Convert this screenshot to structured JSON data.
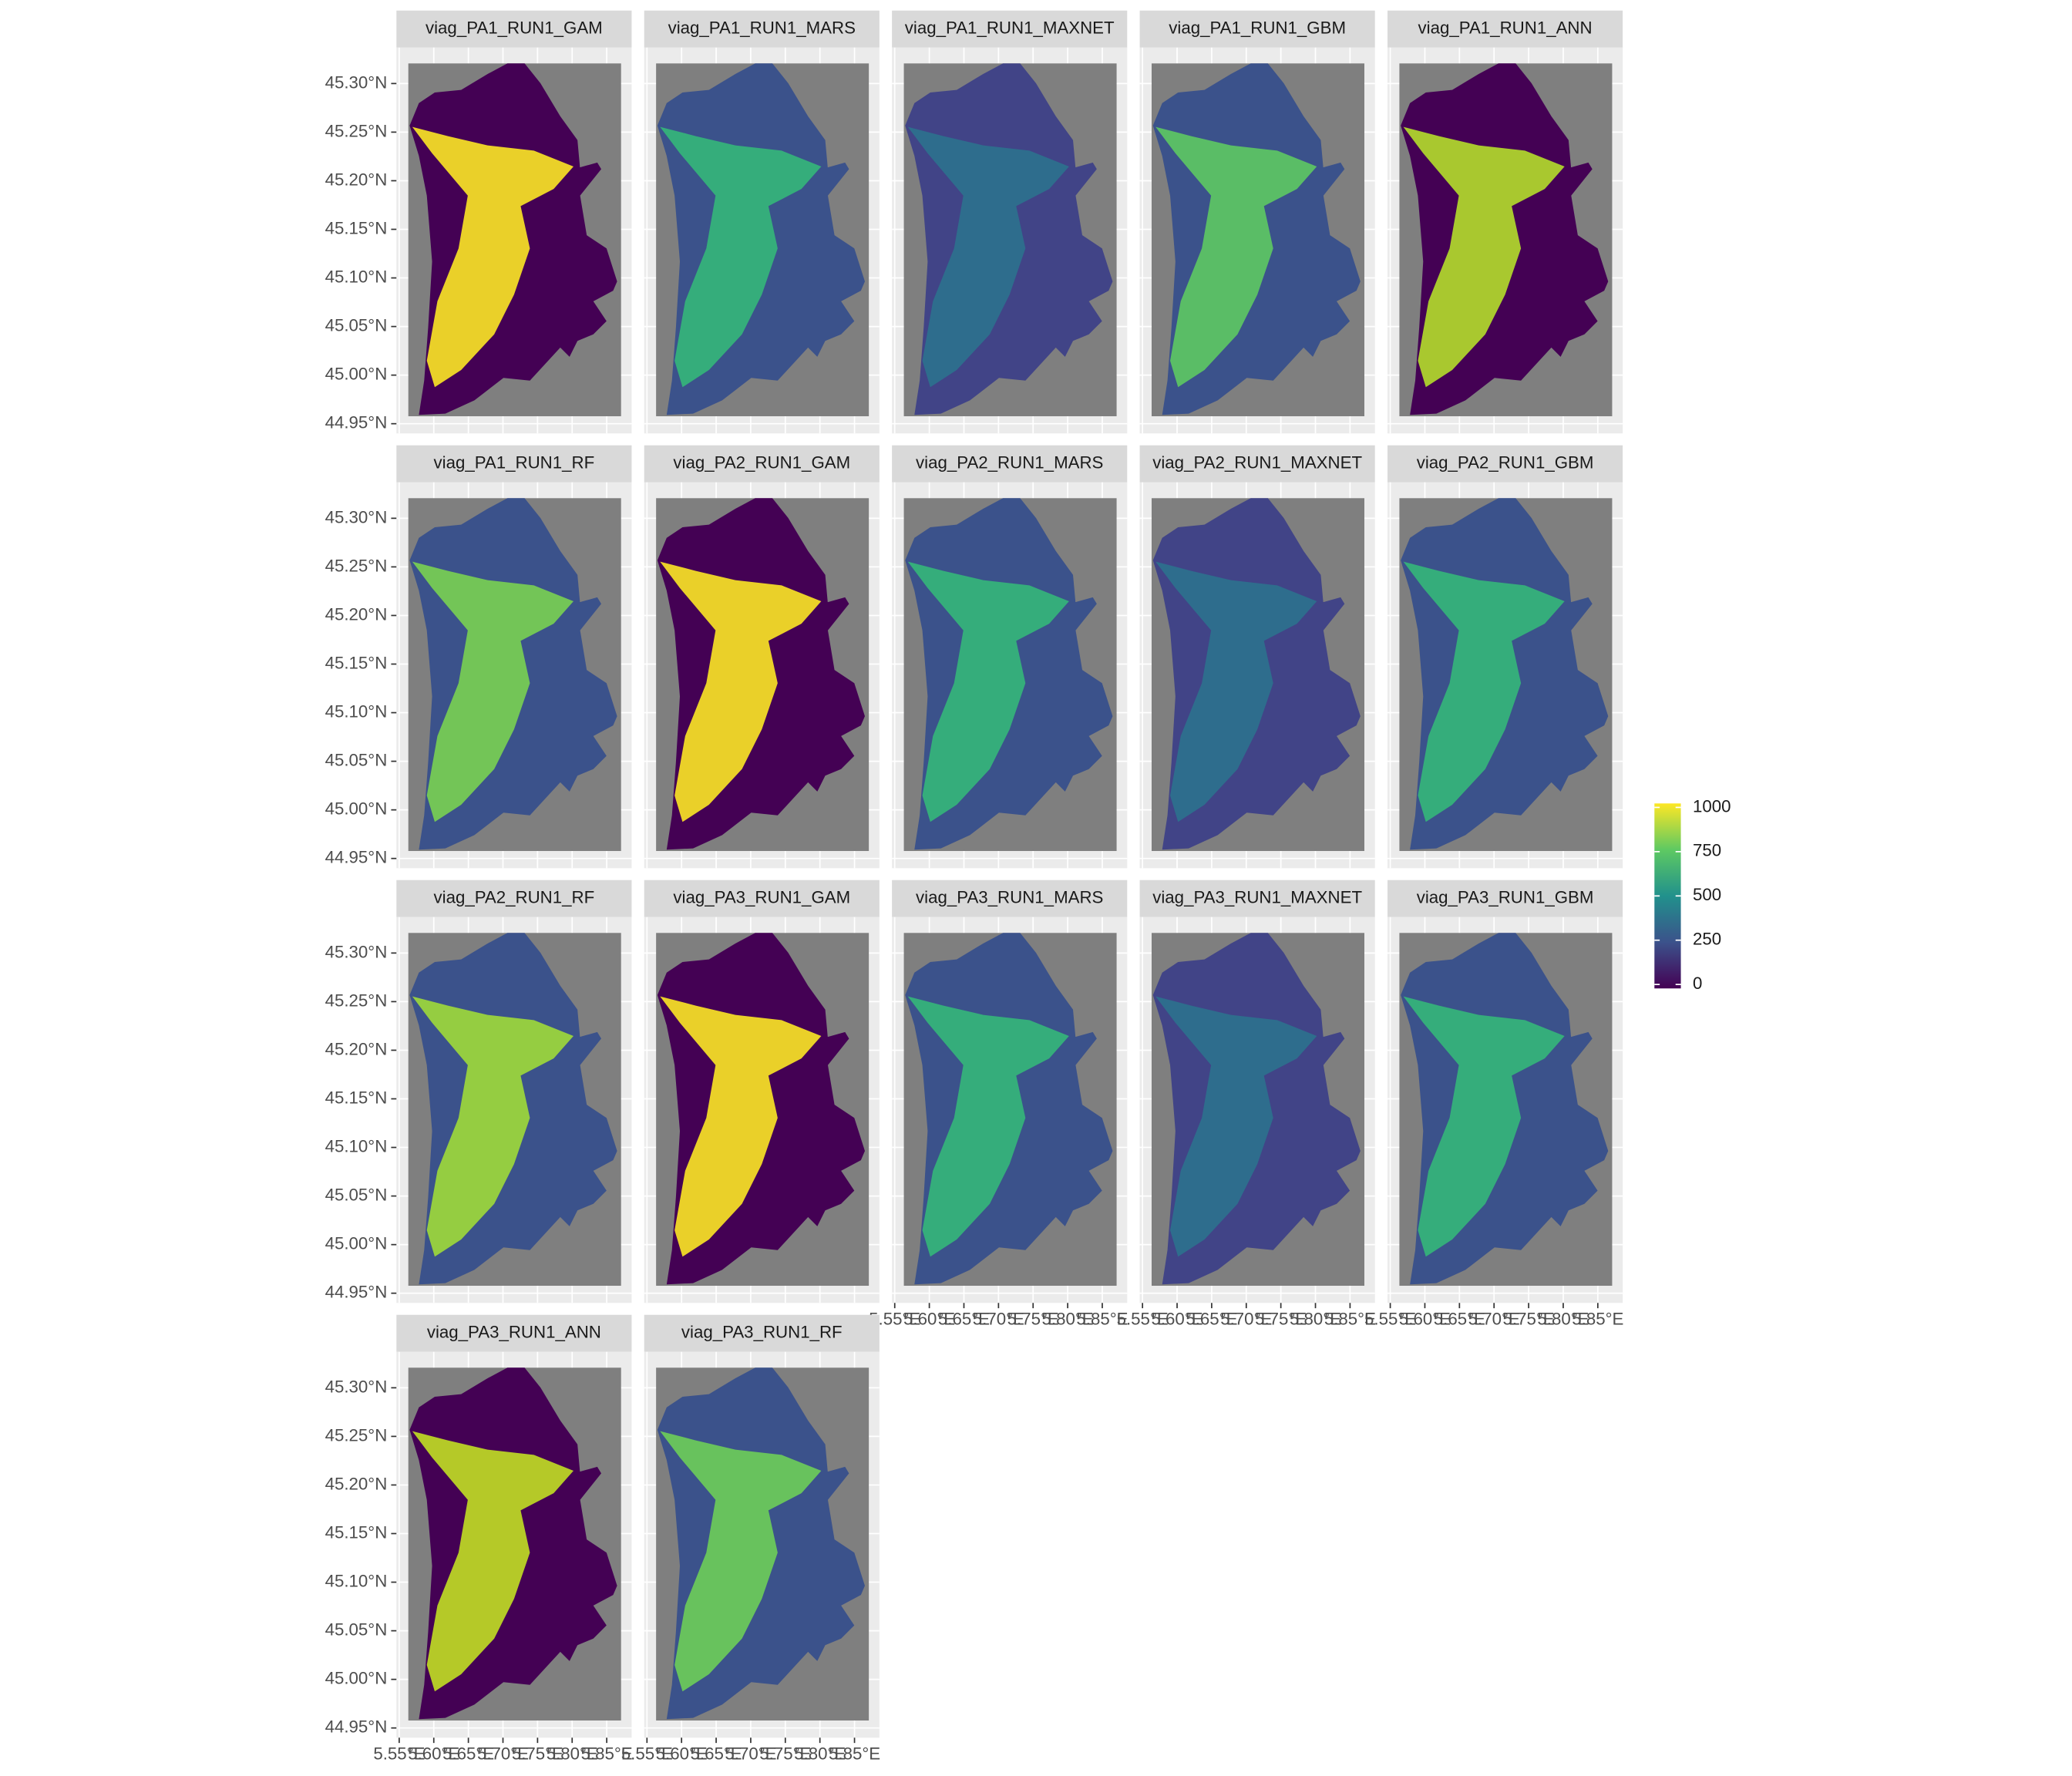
{
  "chart_data": {
    "type": "raster",
    "facets": [
      {
        "title": "viag_PA1_RUN1_GAM",
        "colors": [
          "#440154",
          "#fde725"
        ]
      },
      {
        "title": "viag_PA1_RUN1_MARS",
        "colors": [
          "#3b528b",
          "#35b779"
        ]
      },
      {
        "title": "viag_PA1_RUN1_MAXNET",
        "colors": [
          "#414487",
          "#2c728e"
        ]
      },
      {
        "title": "viag_PA1_RUN1_GBM",
        "colors": [
          "#3b528b",
          "#5ec962"
        ]
      },
      {
        "title": "viag_PA1_RUN1_ANN",
        "colors": [
          "#440154",
          "#b5de2b"
        ]
      },
      {
        "title": "viag_PA1_RUN1_RF",
        "colors": [
          "#3b528b",
          "#7ad151"
        ]
      },
      {
        "title": "viag_PA2_RUN1_GAM",
        "colors": [
          "#440154",
          "#fde725"
        ]
      },
      {
        "title": "viag_PA2_RUN1_MARS",
        "colors": [
          "#3b528b",
          "#35b779"
        ]
      },
      {
        "title": "viag_PA2_RUN1_MAXNET",
        "colors": [
          "#414487",
          "#2c728e"
        ]
      },
      {
        "title": "viag_PA2_RUN1_GBM",
        "colors": [
          "#3b528b",
          "#35b779"
        ]
      },
      {
        "title": "viag_PA2_RUN1_RF",
        "colors": [
          "#3b528b",
          "#a0da39"
        ]
      },
      {
        "title": "viag_PA3_RUN1_GAM",
        "colors": [
          "#440154",
          "#fde725"
        ]
      },
      {
        "title": "viag_PA3_RUN1_MARS",
        "colors": [
          "#3b528b",
          "#35b779"
        ]
      },
      {
        "title": "viag_PA3_RUN1_MAXNET",
        "colors": [
          "#414487",
          "#2c728e"
        ]
      },
      {
        "title": "viag_PA3_RUN1_GBM",
        "colors": [
          "#3b528b",
          "#35b779"
        ]
      },
      {
        "title": "viag_PA3_RUN1_ANN",
        "colors": [
          "#440154",
          "#c2df23"
        ]
      },
      {
        "title": "viag_PA3_RUN1_RF",
        "colors": [
          "#3b528b",
          "#6ece58"
        ]
      }
    ],
    "xlim": [
      5.546,
      5.886
    ],
    "xticks": [
      {
        "value": 5.55,
        "label": "5.55°E"
      },
      {
        "value": 5.6,
        "label": "5.60°E"
      },
      {
        "value": 5.65,
        "label": "5.65°E"
      },
      {
        "value": 5.7,
        "label": "5.70°E"
      },
      {
        "value": 5.75,
        "label": "5.75°E"
      },
      {
        "value": 5.8,
        "label": "5.80°E"
      },
      {
        "value": 5.85,
        "label": "5.85°E"
      }
    ],
    "ylim": [
      44.94,
      45.337
    ],
    "yticks": [
      {
        "value": 44.95,
        "label": "44.95°N"
      },
      {
        "value": 45.0,
        "label": "45.00°N"
      },
      {
        "value": 45.05,
        "label": "45.05°N"
      },
      {
        "value": 45.1,
        "label": "45.10°N"
      },
      {
        "value": 45.15,
        "label": "45.15°N"
      },
      {
        "value": 45.2,
        "label": "45.20°N"
      },
      {
        "value": 45.25,
        "label": "45.25°N"
      },
      {
        "value": 45.3,
        "label": "45.30°N"
      }
    ],
    "grid": true,
    "legend": {
      "lim": [
        0,
        1000
      ],
      "ticks": [
        0,
        250,
        500,
        750,
        1000
      ],
      "palette": [
        "#440154",
        "#3b528b",
        "#21918c",
        "#5ec962",
        "#fde725"
      ]
    }
  }
}
